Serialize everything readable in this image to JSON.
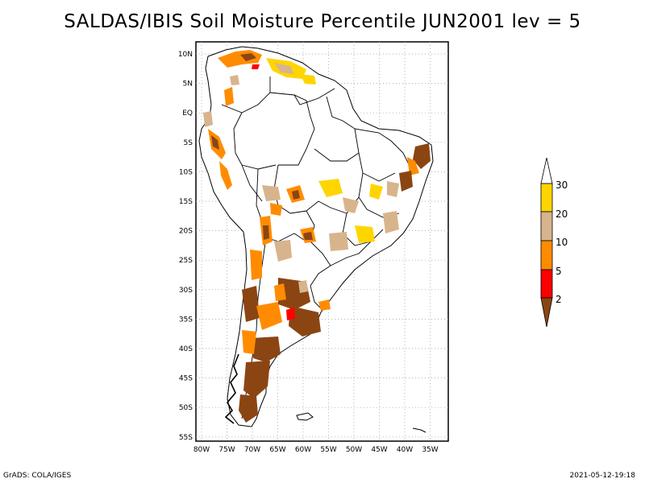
{
  "title": "SALDAS/IBIS Soil Moisture Percentile JUN2001 lev = 5",
  "footer": {
    "left": "GrADS: COLA/IGES",
    "right": "2021-05-12-19:18"
  },
  "map": {
    "region": "South America",
    "lon_range": [
      -81,
      -31
    ],
    "lat_range": [
      -56,
      12
    ],
    "lat_tick_labels": [
      "10N",
      "5N",
      "EQ",
      "5S",
      "10S",
      "15S",
      "20S",
      "25S",
      "30S",
      "35S",
      "40S",
      "45S",
      "50S",
      "55S"
    ],
    "lon_tick_labels": [
      "80W",
      "75W",
      "70W",
      "65W",
      "60W",
      "55W",
      "50W",
      "45W",
      "40W",
      "35W"
    ],
    "grid": true
  },
  "legend": {
    "labels": [
      "30",
      "20",
      "10",
      "5",
      "2"
    ],
    "colors": {
      "above_30": "#ffffff",
      "20_30": "#ffd500",
      "10_20": "#d8b48c",
      "5_10": "#ff8c00",
      "2_5": "#ff0000",
      "below_2": "#8b4513"
    }
  }
}
